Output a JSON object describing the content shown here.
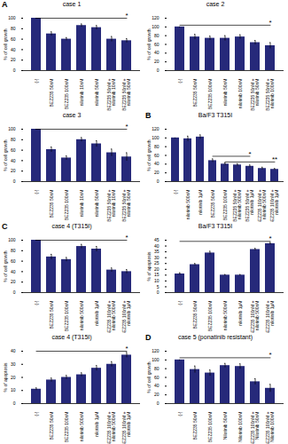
{
  "chart_data": [
    {
      "panel": "A",
      "type": "bar",
      "title": "case 1",
      "y_label": "% of cell growth",
      "color": "#26297a",
      "categories": [
        "(-)",
        "BEZ235 50nM",
        "BEZ235 100nM",
        "nilotinib 10nM",
        "nilotinib 50nM",
        "BEZ235 50nM + nilotinib 10nM",
        "BEZ235 50nM + nilotinib 50nM"
      ],
      "values": [
        100,
        70,
        60,
        86,
        82,
        60,
        57
      ],
      "errors": [
        0,
        4,
        3,
        3,
        4,
        5,
        4
      ],
      "ylim": [
        0,
        100
      ],
      "yticks": [
        0,
        20,
        40,
        60,
        80,
        100
      ],
      "annotations": [
        {
          "text": "*",
          "from": "(-)",
          "to": "BEZ235 50nM + nilotinib 50nM",
          "y": 100
        }
      ]
    },
    {
      "type": "bar",
      "title": "case 2",
      "y_label": "% of cell growth",
      "color": "#26297a",
      "categories": [
        "(-)",
        "BEZ235 50nM",
        "BEZ235 100nM",
        "nilotinib 50nM",
        "nilotinib 100nM",
        "BEZ235 50nM + nilotinib 50nM",
        "BEZ235 50nM + nilotinib 100nM"
      ],
      "values": [
        100,
        77,
        74,
        74,
        77,
        64,
        57
      ],
      "errors": [
        0,
        6,
        5,
        6,
        5,
        5,
        7
      ],
      "ylim": [
        0,
        120
      ],
      "yticks": [
        0,
        20,
        40,
        60,
        80,
        100,
        120
      ],
      "annotations": [
        {
          "text": "*",
          "from": "(-)",
          "to": "BEZ235 50nM + nilotinib 100nM",
          "y": 104
        }
      ]
    },
    {
      "type": "bar",
      "title": "case 3",
      "y_label": "% of cell growth",
      "color": "#26297a",
      "categories": [
        "(-)",
        "BEZ235 50nM",
        "BEZ235 100nM",
        "nilotinib 10nM",
        "nilotinib 50nM",
        "BEZ235 50nM + nilotinib 10nM",
        "BEZ235 50nM + nilotinib 50nM"
      ],
      "values": [
        100,
        61,
        45,
        80,
        72,
        55,
        47
      ],
      "errors": [
        0,
        5,
        4,
        4,
        6,
        7,
        8
      ],
      "ylim": [
        0,
        100
      ],
      "yticks": [
        0,
        20,
        40,
        60,
        80,
        100
      ],
      "annotations": [
        {
          "text": "*",
          "from": "(-)",
          "to": "BEZ235 50nM + nilotinib 50nM",
          "y": 100
        }
      ]
    },
    {
      "panel": "B",
      "type": "bar",
      "title": "Ba/F3 T315I",
      "y_label": "% of cell growth",
      "color": "#26297a",
      "categories": [
        "(-)",
        "nilotinib 500nM",
        "nilotinib 1µM",
        "BEZ235 50nM",
        "BEZ235 100nM",
        "BEZ235 50nM + nilotinib 500nM",
        "BEZ235 50nM + nilotinib 1µM",
        "BEZ235 100nM + nilotinib 500nM",
        "BEZ235 100nM + nilotinib 1µM"
      ],
      "values": [
        100,
        98,
        102,
        48,
        40,
        38,
        35,
        30,
        28
      ],
      "errors": [
        0,
        6,
        5,
        4,
        3,
        3,
        3,
        3,
        2
      ],
      "ylim": [
        0,
        120
      ],
      "yticks": [
        0,
        20,
        40,
        60,
        80,
        100,
        120
      ],
      "annotations": [
        {
          "text": "*",
          "from": "BEZ235 50nM",
          "to": "BEZ235 50nM + nilotinib 1µM",
          "y": 58
        },
        {
          "text": "**",
          "from": "BEZ235 100nM",
          "to": "BEZ235 100nM + nilotinib 1µM",
          "y": 45
        }
      ]
    },
    {
      "panel": "C",
      "type": "bar",
      "title": "case 4 (T315I)",
      "y_label": "% of cell growth",
      "color": "#26297a",
      "categories": [
        "(-)",
        "BEZ235 50nM",
        "BEZ235 100nM",
        "nilotinib 500nM",
        "nilotinib 1µM",
        "BEZ235 100nM + nilotinib 500nM",
        "BEZ235 100nM + nilotinib 1µM"
      ],
      "values": [
        100,
        68,
        63,
        88,
        83,
        43,
        40
      ],
      "errors": [
        0,
        5,
        4,
        4,
        5,
        4,
        4
      ],
      "ylim": [
        0,
        100
      ],
      "yticks": [
        0,
        20,
        40,
        60,
        80,
        100
      ],
      "annotations": [
        {
          "text": "*",
          "from": "(-)",
          "to": "BEZ235 100nM + nilotinib 1µM",
          "y": 100
        }
      ]
    },
    {
      "type": "bar",
      "title": "Ba/F3 T315I",
      "y_label": "% of apoptosis",
      "color": "#26297a",
      "categories": [
        "(-)",
        "BEZ235 50nM",
        "BEZ235 100nM",
        "nilotinib 500nM",
        "nilotinib 1µM",
        "BEZ235 100nM + nilotinib 500nM",
        "BEZ235 100nM + nilotinib 1µM"
      ],
      "values": [
        16,
        24,
        34,
        15,
        15,
        37,
        42
      ],
      "errors": [
        1,
        1,
        1.5,
        0.5,
        0.5,
        1,
        1
      ],
      "ylim": [
        0,
        45
      ],
      "yticks": [
        0,
        5,
        10,
        15,
        20,
        25,
        30,
        35,
        40,
        45
      ],
      "annotations": [
        {
          "text": "*",
          "from": "(-)",
          "to": "BEZ235 100nM + nilotinib 1µM",
          "y": 44
        }
      ]
    },
    {
      "type": "bar",
      "title": "case 4 (T315I)",
      "y_label": "% of apoptosis",
      "color": "#26297a",
      "categories": [
        "(-)",
        "BEZ235 50nM",
        "BEZ235 100nM",
        "nilotinib 500nM",
        "nilotinib 1µM",
        "BEZ235 100nM + nilotinib 500nM",
        "BEZ235 100nM + nilotinib 1µM"
      ],
      "values": [
        11,
        18,
        20,
        22,
        27,
        30,
        37
      ],
      "errors": [
        1,
        1.5,
        1.5,
        1.5,
        2,
        2,
        2
      ],
      "ylim": [
        0,
        40
      ],
      "yticks": [
        0,
        10,
        20,
        30,
        40
      ],
      "annotations": [
        {
          "text": "*",
          "from": "(-)",
          "to": "BEZ235 100nM + nilotinib 1µM",
          "y": 40
        }
      ]
    },
    {
      "panel": "D",
      "type": "bar",
      "title": "case 5 (ponatinib resistant)",
      "y_label": "% of cell growth",
      "color": "#26297a",
      "categories": [
        "(-)",
        "BEZ235 50nM",
        "BEZ235 100nM",
        "Nilotinib 50nM",
        "Nilotinib 100nM",
        "BEZ235 100nM + Nilotinib 50nM",
        "BEZ235 100nM + Nilotinib 100nM"
      ],
      "values": [
        100,
        78,
        70,
        87,
        85,
        50,
        35
      ],
      "errors": [
        0,
        8,
        7,
        5,
        6,
        7,
        9
      ],
      "ylim": [
        0,
        120
      ],
      "yticks": [
        0,
        20,
        40,
        60,
        80,
        100,
        120
      ],
      "annotations": [
        {
          "text": "*",
          "from": "(-)",
          "to": "BEZ235 100nM + Nilotinib 100nM",
          "y": 105
        }
      ]
    }
  ]
}
